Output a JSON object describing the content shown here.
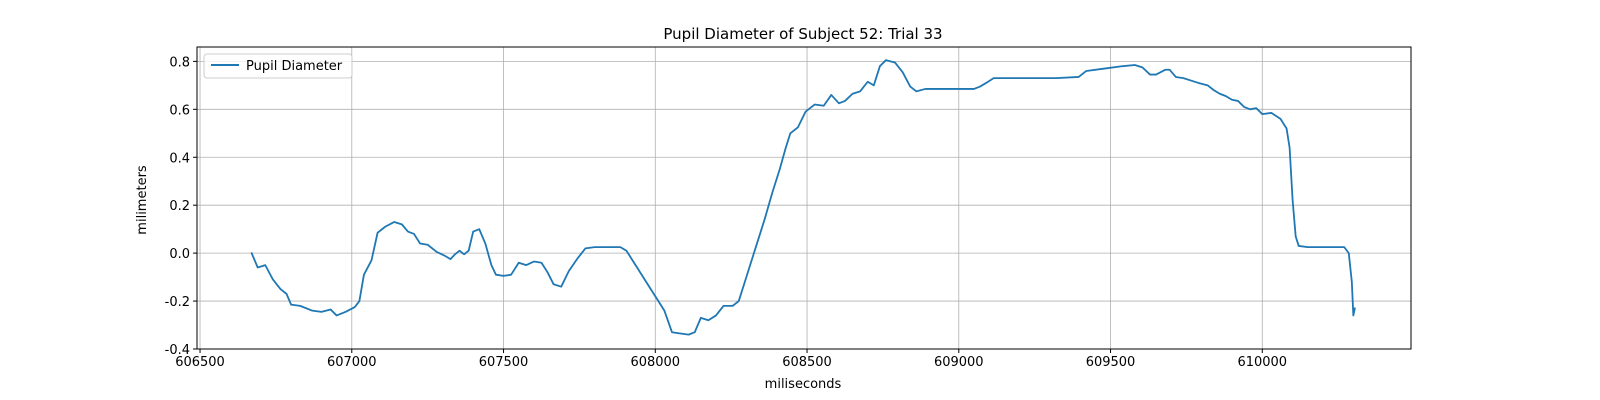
{
  "chart_data": {
    "type": "line",
    "title": "Pupil Diameter of Subject 52: Trial 33",
    "xlabel": "miliseconds",
    "ylabel": "milimeters",
    "xlim": [
      606490,
      610490
    ],
    "ylim": [
      -0.4,
      0.86
    ],
    "xticks": [
      606500,
      607000,
      607500,
      608000,
      608500,
      609000,
      609500,
      610000
    ],
    "yticks": [
      -0.4,
      -0.2,
      0.0,
      0.2,
      0.4,
      0.6,
      0.8
    ],
    "grid": true,
    "legend_position": "top-left",
    "color": "#1f77b4",
    "series": [
      {
        "name": "Pupil Diameter",
        "points": [
          [
            606670,
            0.0
          ],
          [
            606690,
            -0.06
          ],
          [
            606715,
            -0.05
          ],
          [
            606740,
            -0.11
          ],
          [
            606765,
            -0.15
          ],
          [
            606785,
            -0.17
          ],
          [
            606800,
            -0.215
          ],
          [
            606830,
            -0.22
          ],
          [
            606870,
            -0.24
          ],
          [
            606900,
            -0.245
          ],
          [
            606930,
            -0.235
          ],
          [
            606950,
            -0.26
          ],
          [
            606980,
            -0.245
          ],
          [
            607010,
            -0.225
          ],
          [
            607025,
            -0.2
          ],
          [
            607040,
            -0.09
          ],
          [
            607065,
            -0.03
          ],
          [
            607085,
            0.085
          ],
          [
            607110,
            0.11
          ],
          [
            607140,
            0.13
          ],
          [
            607165,
            0.12
          ],
          [
            607185,
            0.09
          ],
          [
            607205,
            0.08
          ],
          [
            607225,
            0.04
          ],
          [
            607250,
            0.035
          ],
          [
            607280,
            0.005
          ],
          [
            607305,
            -0.01
          ],
          [
            607325,
            -0.025
          ],
          [
            607340,
            -0.005
          ],
          [
            607355,
            0.01
          ],
          [
            607370,
            -0.005
          ],
          [
            607385,
            0.01
          ],
          [
            607400,
            0.09
          ],
          [
            607420,
            0.1
          ],
          [
            607440,
            0.04
          ],
          [
            607460,
            -0.05
          ],
          [
            607475,
            -0.09
          ],
          [
            607500,
            -0.095
          ],
          [
            607525,
            -0.09
          ],
          [
            607550,
            -0.04
          ],
          [
            607575,
            -0.05
          ],
          [
            607600,
            -0.035
          ],
          [
            607625,
            -0.04
          ],
          [
            607645,
            -0.08
          ],
          [
            607665,
            -0.13
          ],
          [
            607690,
            -0.14
          ],
          [
            607715,
            -0.075
          ],
          [
            607745,
            -0.02
          ],
          [
            607770,
            0.02
          ],
          [
            607800,
            0.025
          ],
          [
            607830,
            0.025
          ],
          [
            607860,
            0.025
          ],
          [
            607885,
            0.025
          ],
          [
            607905,
            0.01
          ],
          [
            607930,
            -0.04
          ],
          [
            607965,
            -0.11
          ],
          [
            608000,
            -0.18
          ],
          [
            608030,
            -0.24
          ],
          [
            608055,
            -0.33
          ],
          [
            608080,
            -0.335
          ],
          [
            608110,
            -0.34
          ],
          [
            608130,
            -0.33
          ],
          [
            608150,
            -0.27
          ],
          [
            608175,
            -0.28
          ],
          [
            608200,
            -0.26
          ],
          [
            608225,
            -0.22
          ],
          [
            608255,
            -0.22
          ],
          [
            608275,
            -0.2
          ],
          [
            608300,
            -0.1
          ],
          [
            608330,
            0.02
          ],
          [
            608360,
            0.14
          ],
          [
            608385,
            0.25
          ],
          [
            608410,
            0.35
          ],
          [
            608430,
            0.44
          ],
          [
            608445,
            0.5
          ],
          [
            608470,
            0.525
          ],
          [
            608495,
            0.59
          ],
          [
            608525,
            0.62
          ],
          [
            608555,
            0.615
          ],
          [
            608580,
            0.66
          ],
          [
            608605,
            0.625
          ],
          [
            608625,
            0.635
          ],
          [
            608650,
            0.665
          ],
          [
            608675,
            0.675
          ],
          [
            608700,
            0.715
          ],
          [
            608720,
            0.7
          ],
          [
            608740,
            0.78
          ],
          [
            608760,
            0.805
          ],
          [
            608790,
            0.795
          ],
          [
            608815,
            0.755
          ],
          [
            608840,
            0.695
          ],
          [
            608860,
            0.675
          ],
          [
            608890,
            0.685
          ],
          [
            608930,
            0.685
          ],
          [
            608990,
            0.685
          ],
          [
            609050,
            0.685
          ],
          [
            609070,
            0.695
          ],
          [
            609090,
            0.71
          ],
          [
            609115,
            0.73
          ],
          [
            609175,
            0.73
          ],
          [
            609250,
            0.73
          ],
          [
            609320,
            0.73
          ],
          [
            609395,
            0.735
          ],
          [
            609420,
            0.76
          ],
          [
            609480,
            0.77
          ],
          [
            609540,
            0.78
          ],
          [
            609580,
            0.785
          ],
          [
            609605,
            0.775
          ],
          [
            609630,
            0.745
          ],
          [
            609650,
            0.745
          ],
          [
            609680,
            0.765
          ],
          [
            609695,
            0.765
          ],
          [
            609715,
            0.735
          ],
          [
            609740,
            0.73
          ],
          [
            609765,
            0.72
          ],
          [
            609790,
            0.71
          ],
          [
            609820,
            0.7
          ],
          [
            609840,
            0.68
          ],
          [
            609860,
            0.665
          ],
          [
            609880,
            0.655
          ],
          [
            609900,
            0.64
          ],
          [
            609920,
            0.635
          ],
          [
            609940,
            0.61
          ],
          [
            609960,
            0.6
          ],
          [
            609980,
            0.605
          ],
          [
            610000,
            0.58
          ],
          [
            610030,
            0.585
          ],
          [
            610060,
            0.56
          ],
          [
            610080,
            0.52
          ],
          [
            610090,
            0.44
          ],
          [
            610100,
            0.22
          ],
          [
            610110,
            0.07
          ],
          [
            610120,
            0.03
          ],
          [
            610150,
            0.025
          ],
          [
            610200,
            0.025
          ],
          [
            610250,
            0.025
          ],
          [
            610270,
            0.025
          ],
          [
            610285,
            0.0
          ],
          [
            610295,
            -0.12
          ],
          [
            610300,
            -0.26
          ],
          [
            610305,
            -0.23
          ]
        ]
      }
    ]
  }
}
